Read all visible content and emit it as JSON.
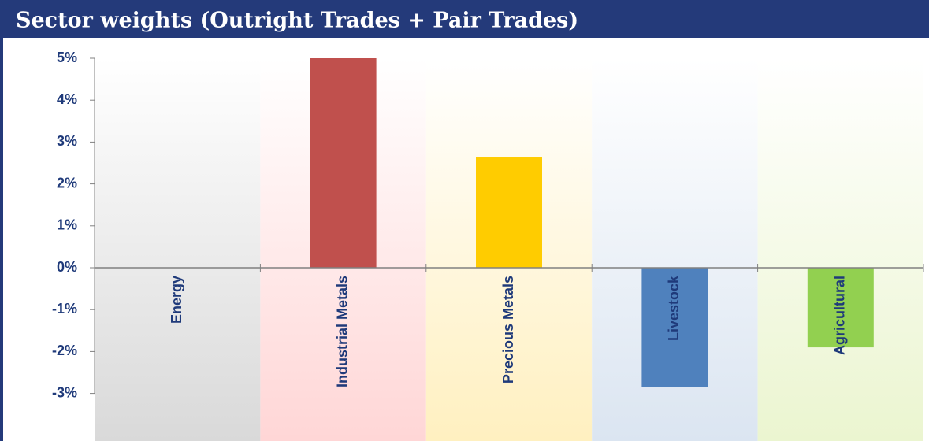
{
  "chart_data": {
    "type": "bar",
    "title": "Sector weights (Outright Trades + Pair Trades)",
    "categories": [
      "Energy",
      "Industrial Metals",
      "Precious Metals",
      "Livestock",
      "Agricultural"
    ],
    "series": [
      {
        "name": "Sector weight",
        "colors": [
          "#a6a6a6",
          "#c0504d",
          "#ffcc00",
          "#4f81bd",
          "#92d050"
        ],
        "values": [
          0,
          5.0,
          2.65,
          -2.85,
          -1.9
        ]
      }
    ],
    "band_colors": [
      "#d9d9d9",
      "#ffd6d6",
      "#fff0c0",
      "#dbe5f1",
      "#ebf5d0"
    ],
    "ylim": [
      -3,
      5
    ],
    "yticks": [
      {
        "value": 5,
        "label": "5%"
      },
      {
        "value": 4,
        "label": "4%"
      },
      {
        "value": 3,
        "label": "3%"
      },
      {
        "value": 2,
        "label": "2%"
      },
      {
        "value": 1,
        "label": "1%"
      },
      {
        "value": 0,
        "label": "0%"
      },
      {
        "value": -1,
        "label": "-1%"
      },
      {
        "value": -2,
        "label": "-2%"
      },
      {
        "value": -3,
        "label": "-3%"
      }
    ]
  }
}
